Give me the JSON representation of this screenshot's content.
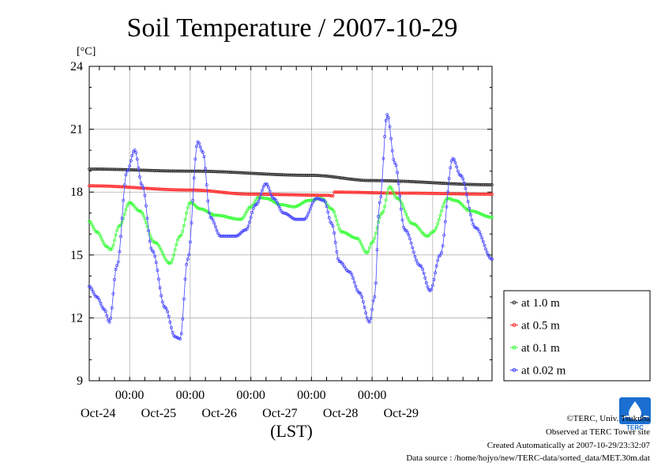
{
  "chart_data": {
    "type": "line",
    "title": "Soil Temperature / 2007-10-29",
    "ylabel": "[°C]",
    "xlabel": "(LST)",
    "ylim": [
      9,
      24
    ],
    "yticks": [
      9,
      12,
      15,
      18,
      21,
      24
    ],
    "xlim": [
      "2007-10-23T08:00",
      "2007-10-29T23:30"
    ],
    "x_time_labels": [
      "00:00",
      "00:00",
      "00:00",
      "00:00",
      "00:00"
    ],
    "x_date_labels": [
      "Oct-24",
      "Oct-25",
      "Oct-26",
      "Oct-27",
      "Oct-28",
      "Oct-29"
    ],
    "x_label_times": [
      "2007-10-24T00:00",
      "2007-10-25T00:00",
      "2007-10-26T00:00",
      "2007-10-27T00:00",
      "2007-10-28T00:00"
    ],
    "x_date_centers": [
      "2007-10-24T00:00",
      "2007-10-25T00:00",
      "2007-10-26T00:00",
      "2007-10-27T00:00",
      "2007-10-28T00:00",
      "2007-10-29T00:00"
    ],
    "grid": true,
    "legend_position": "right",
    "series": [
      {
        "name": "at 1.0 m",
        "color": "#333333",
        "points": [
          [
            "2007-10-23T08:00",
            19.1
          ],
          [
            "2007-10-25T00:00",
            19.0
          ],
          [
            "2007-10-27T00:00",
            18.8
          ],
          [
            "2007-10-28T00:00",
            18.55
          ],
          [
            "2007-10-29T23:30",
            18.35
          ]
        ]
      },
      {
        "name": "at 0.5 m",
        "color": "#ff2a2a",
        "points": [
          [
            "2007-10-23T08:00",
            18.3
          ],
          [
            "2007-10-25T00:00",
            18.1
          ],
          [
            "2007-10-26T00:00",
            17.9
          ],
          [
            "2007-10-27T06:00",
            17.85
          ],
          [
            "2007-10-27T08:30",
            17.82
          ],
          [
            "2007-10-27T09:00",
            18.0
          ],
          [
            "2007-10-28T12:00",
            17.95
          ],
          [
            "2007-10-29T23:30",
            17.9
          ]
        ]
      },
      {
        "name": "at 0.1 m",
        "color": "#33ff33",
        "points": [
          [
            "2007-10-23T08:00",
            16.6
          ],
          [
            "2007-10-23T11:00",
            16.1
          ],
          [
            "2007-10-23T15:00",
            15.4
          ],
          [
            "2007-10-23T16:30",
            15.25
          ],
          [
            "2007-10-23T20:00",
            16.4
          ],
          [
            "2007-10-24T00:00",
            17.5
          ],
          [
            "2007-10-24T04:00",
            17.1
          ],
          [
            "2007-10-24T10:00",
            15.6
          ],
          [
            "2007-10-24T16:00",
            14.6
          ],
          [
            "2007-10-24T20:00",
            15.9
          ],
          [
            "2007-10-25T00:00",
            17.5
          ],
          [
            "2007-10-25T04:00",
            17.2
          ],
          [
            "2007-10-25T10:00",
            16.9
          ],
          [
            "2007-10-25T20:00",
            16.7
          ],
          [
            "2007-10-26T00:00",
            17.3
          ],
          [
            "2007-10-26T03:00",
            17.75
          ],
          [
            "2007-10-26T06:00",
            17.7
          ],
          [
            "2007-10-26T12:00",
            17.4
          ],
          [
            "2007-10-26T17:00",
            17.3
          ],
          [
            "2007-10-26T23:00",
            17.6
          ],
          [
            "2007-10-27T04:00",
            17.7
          ],
          [
            "2007-10-27T08:00",
            17.2
          ],
          [
            "2007-10-27T12:00",
            16.1
          ],
          [
            "2007-10-27T18:00",
            15.8
          ],
          [
            "2007-10-27T22:00",
            15.1
          ],
          [
            "2007-10-28T00:00",
            15.6
          ],
          [
            "2007-10-28T04:00",
            17.0
          ],
          [
            "2007-10-28T07:00",
            18.25
          ],
          [
            "2007-10-28T10:00",
            17.7
          ],
          [
            "2007-10-28T16:00",
            16.5
          ],
          [
            "2007-10-28T22:00",
            15.9
          ],
          [
            "2007-10-29T00:00",
            16.1
          ],
          [
            "2007-10-29T06:00",
            17.7
          ],
          [
            "2007-10-29T09:00",
            17.6
          ],
          [
            "2007-10-29T15:00",
            17.1
          ],
          [
            "2007-10-29T23:30",
            16.8
          ]
        ]
      },
      {
        "name": "at 0.02 m",
        "color": "#4444ff",
        "points": [
          [
            "2007-10-23T08:00",
            13.5
          ],
          [
            "2007-10-23T11:00",
            13.0
          ],
          [
            "2007-10-23T14:00",
            12.4
          ],
          [
            "2007-10-23T16:00",
            11.8
          ],
          [
            "2007-10-23T19:00",
            14.5
          ],
          [
            "2007-10-23T23:00",
            19.0
          ],
          [
            "2007-10-24T02:00",
            20.0
          ],
          [
            "2007-10-24T05:00",
            18.3
          ],
          [
            "2007-10-24T09:00",
            15.2
          ],
          [
            "2007-10-24T14:00",
            12.5
          ],
          [
            "2007-10-24T18:00",
            11.1
          ],
          [
            "2007-10-24T20:00",
            11.0
          ],
          [
            "2007-10-24T23:00",
            14.8
          ],
          [
            "2007-10-25T03:00",
            20.4
          ],
          [
            "2007-10-25T05:00",
            19.9
          ],
          [
            "2007-10-25T08:00",
            16.8
          ],
          [
            "2007-10-25T12:00",
            15.9
          ],
          [
            "2007-10-25T18:00",
            15.9
          ],
          [
            "2007-10-25T22:00",
            16.2
          ],
          [
            "2007-10-26T02:00",
            17.4
          ],
          [
            "2007-10-26T06:00",
            18.4
          ],
          [
            "2007-10-26T09:00",
            17.7
          ],
          [
            "2007-10-26T13:00",
            17.0
          ],
          [
            "2007-10-26T18:00",
            16.7
          ],
          [
            "2007-10-26T21:00",
            16.7
          ],
          [
            "2007-10-27T02:00",
            17.7
          ],
          [
            "2007-10-27T05:00",
            17.6
          ],
          [
            "2007-10-27T08:00",
            16.5
          ],
          [
            "2007-10-27T11:00",
            14.7
          ],
          [
            "2007-10-27T15:00",
            14.2
          ],
          [
            "2007-10-27T19:00",
            13.2
          ],
          [
            "2007-10-27T23:00",
            11.8
          ],
          [
            "2007-10-28T01:00",
            13.0
          ],
          [
            "2007-10-28T03:00",
            17.5
          ],
          [
            "2007-10-28T06:00",
            21.7
          ],
          [
            "2007-10-28T09:00",
            19.4
          ],
          [
            "2007-10-28T13:00",
            16.2
          ],
          [
            "2007-10-28T19:00",
            14.5
          ],
          [
            "2007-10-28T23:00",
            13.3
          ],
          [
            "2007-10-29T03:00",
            15.0
          ],
          [
            "2007-10-29T08:00",
            19.6
          ],
          [
            "2007-10-29T11:00",
            18.8
          ],
          [
            "2007-10-29T17:00",
            16.3
          ],
          [
            "2007-10-29T23:30",
            14.8
          ]
        ]
      }
    ]
  },
  "footer": {
    "copyright": "©TERC, Univ. Tsukuba",
    "observed": "Observed at TERC Tower site",
    "created": "Created Automatically at 2007-10-29/23:32:07",
    "source": "Data source : /home/hojyo/new/TERC-data/sorted_data/MET.30m.dat"
  },
  "logo": {
    "text": "TERC",
    "color": "#1a6fd1"
  }
}
